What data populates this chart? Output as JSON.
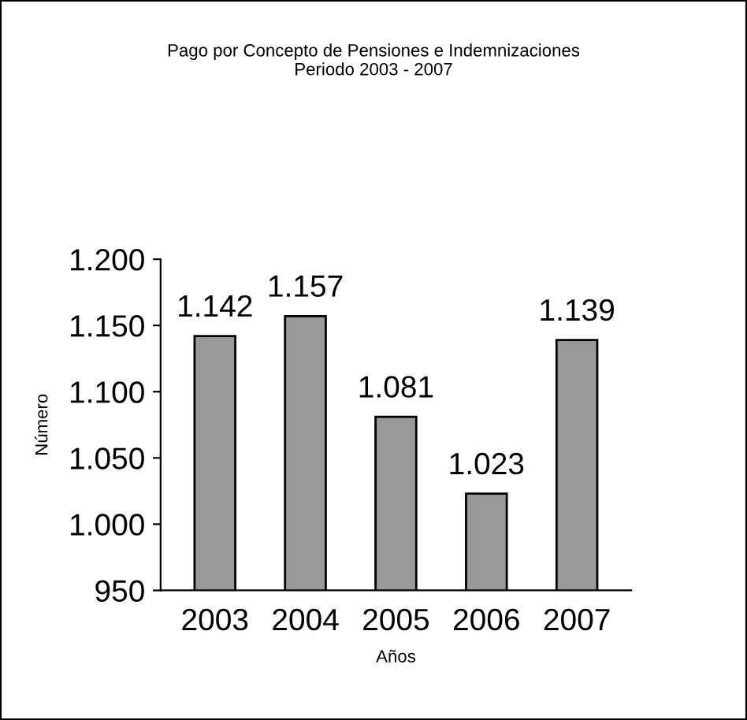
{
  "chart_data": {
    "type": "bar",
    "title": "Pago por Concepto de Pensiones e Indemnizaciones\nPeriodo 2003 - 2007",
    "xlabel": "Años",
    "ylabel": "Número",
    "categories": [
      "2003",
      "2004",
      "2005",
      "2006",
      "2007"
    ],
    "values": [
      1142,
      1157,
      1081,
      1023,
      1139
    ],
    "value_labels": [
      "1.142",
      "1.157",
      "1.081",
      "1.023",
      "1.139"
    ],
    "color": "#999999",
    "ylim": [
      950,
      1200
    ],
    "yticks": [
      {
        "value": 950,
        "label": "950"
      },
      {
        "value": 1000,
        "label": "1.000"
      },
      {
        "value": 1050,
        "label": "1.050"
      },
      {
        "value": 1100,
        "label": "1.100"
      },
      {
        "value": 1150,
        "label": "1.150"
      },
      {
        "value": 1200,
        "label": "1.200"
      }
    ],
    "grid": false,
    "legend": false
  }
}
